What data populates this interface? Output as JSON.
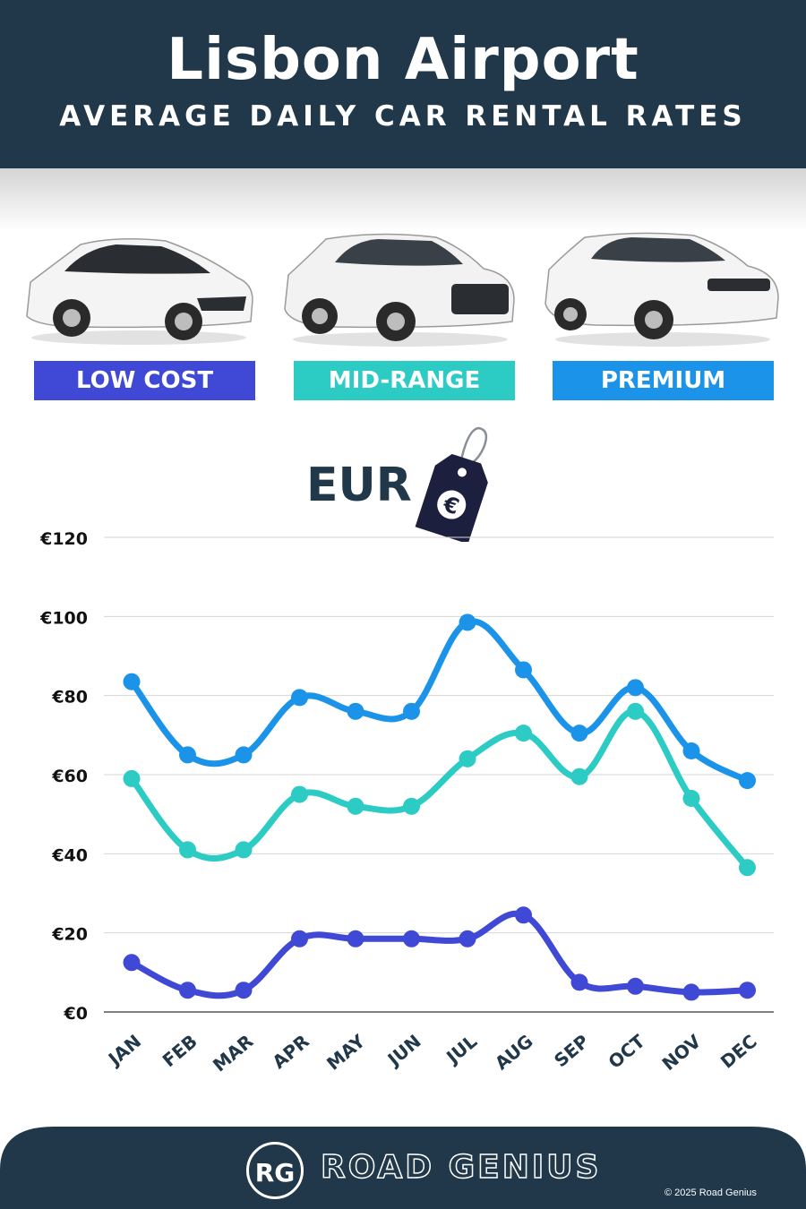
{
  "header": {
    "title": "Lisbon Airport",
    "subtitle": "AVERAGE DAILY CAR RENTAL RATES"
  },
  "categories": [
    {
      "label": "LOW COST",
      "color": "#4048d6"
    },
    {
      "label": "MID-RANGE",
      "color": "#2ccbc4"
    },
    {
      "label": "PREMIUM",
      "color": "#1b93e8"
    }
  ],
  "currency_label": "EUR",
  "currency_icon": "euro-price-tag-icon",
  "chart_data": {
    "type": "line",
    "x": [
      "JAN",
      "FEB",
      "MAR",
      "APR",
      "MAY",
      "JUN",
      "JUL",
      "AUG",
      "SEP",
      "OCT",
      "NOV",
      "DEC"
    ],
    "yticks": [
      "€0",
      "€20",
      "€40",
      "€60",
      "€80",
      "€100",
      "€120"
    ],
    "ylim": [
      0,
      120
    ],
    "grid": true,
    "series": [
      {
        "name": "LOW COST",
        "color": "#4048d6",
        "values": [
          12.5,
          5.5,
          5.5,
          18.5,
          18.5,
          18.5,
          18.5,
          24.5,
          7.5,
          6.5,
          5,
          5.5
        ]
      },
      {
        "name": "MID-RANGE",
        "color": "#2ccbc4",
        "values": [
          59,
          41,
          41,
          55,
          52,
          52,
          64,
          70.5,
          59.5,
          76,
          54,
          36.5
        ]
      },
      {
        "name": "PREMIUM",
        "color": "#1b93e8",
        "values": [
          83.5,
          65,
          65,
          79.5,
          76,
          76,
          98.5,
          86.5,
          70.5,
          82,
          66,
          58.5
        ]
      }
    ]
  },
  "footer": {
    "logo": "RG",
    "brand": "ROAD GENIUS",
    "copyright": "© 2025 Road Genius"
  }
}
